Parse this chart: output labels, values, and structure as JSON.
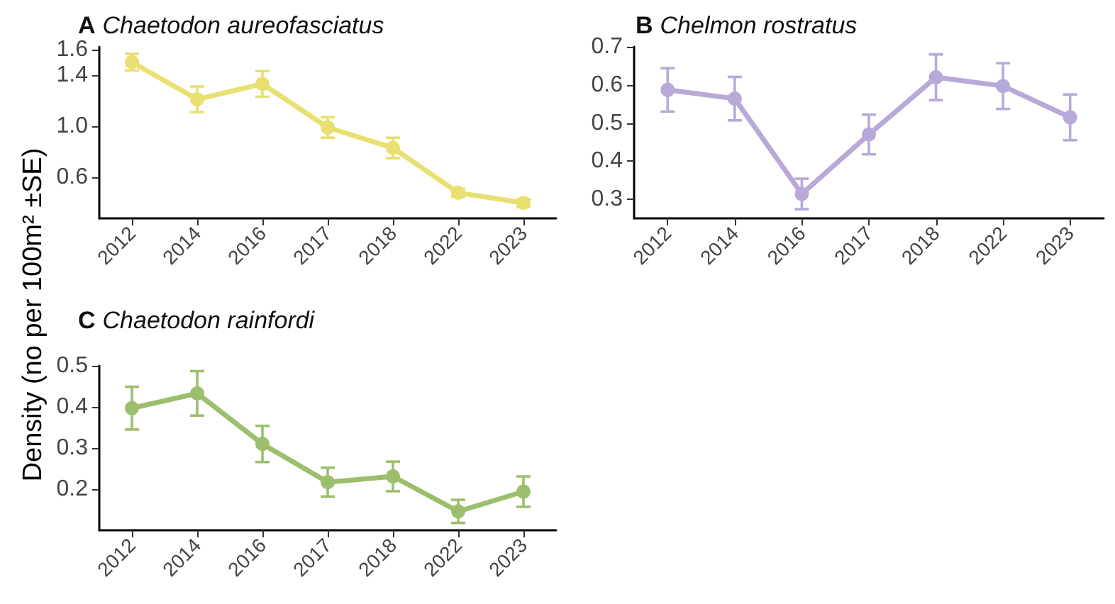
{
  "chart_data": [
    {
      "type": "line",
      "title": "A Chaetodon aureofasciatus",
      "ylabel": "Density (no per 100m² ±SE)",
      "categories": [
        "2012",
        "2014",
        "2016",
        "2017",
        "2018",
        "2022",
        "2023"
      ],
      "series": [
        {
          "color": "#e8e070",
          "values": [
            1.5,
            1.21,
            1.33,
            0.99,
            0.83,
            0.48,
            0.4
          ],
          "errors": [
            0.065,
            0.1,
            0.1,
            0.08,
            0.08,
            0.03,
            0.03
          ]
        }
      ],
      "ylim": [
        0.28,
        1.62
      ],
      "yticks": [
        0.6,
        {
          "value": 1,
          "label": "1.0"
        },
        1.4,
        1.6
      ],
      "grid": false,
      "marker": "circle",
      "line_style": "solid"
    },
    {
      "type": "line",
      "title": "B Chelmon rostratus",
      "categories": [
        "2012",
        "2014",
        "2016",
        "2017",
        "2018",
        "2022",
        "2023"
      ],
      "series": [
        {
          "color": "#b8a9d9",
          "values": [
            0.587,
            0.564,
            0.314,
            0.47,
            0.62,
            0.597,
            0.515
          ],
          "errors": [
            0.057,
            0.057,
            0.04,
            0.052,
            0.06,
            0.06,
            0.06
          ]
        }
      ],
      "ylim": [
        0.25,
        0.7
      ],
      "yticks": [
        0.3,
        0.4,
        0.5,
        0.6,
        0.7
      ],
      "grid": false,
      "marker": "circle",
      "line_style": "solid"
    },
    {
      "type": "line",
      "title": "C Chaetodon rainfordi",
      "categories": [
        "2012",
        "2014",
        "2016",
        "2017",
        "2018",
        "2022",
        "2023"
      ],
      "series": [
        {
          "color": "#9cbf6e",
          "values": [
            0.397,
            0.433,
            0.31,
            0.217,
            0.231,
            0.146,
            0.194
          ],
          "errors": [
            0.052,
            0.054,
            0.044,
            0.035,
            0.036,
            0.028,
            0.037
          ]
        }
      ],
      "ylim": [
        0.1,
        0.5
      ],
      "yticks": [
        0.2,
        0.3,
        0.4,
        0.5
      ],
      "grid": false,
      "marker": "circle",
      "line_style": "solid"
    }
  ]
}
